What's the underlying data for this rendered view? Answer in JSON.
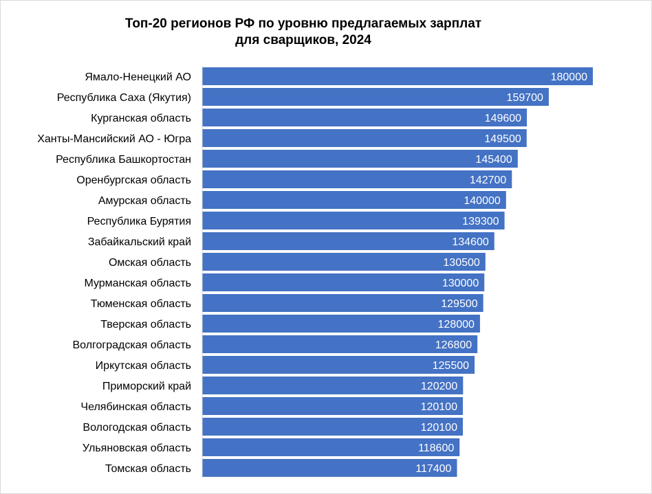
{
  "chart_data": {
    "type": "bar",
    "orientation": "horizontal",
    "title_line1": "Топ-20 регионов РФ по уровню предлагаемых зарплат",
    "title_line2": "для сварщиков, 2024",
    "xlabel": "",
    "ylabel": "",
    "xlim": [
      0,
      180000
    ],
    "grid": false,
    "legend": "none",
    "bar_color": "#4472C4",
    "label_color": "#ffffff",
    "categories": [
      "Ямало-Ненецкий АО",
      "Республика Саха (Якутия)",
      "Курганская область",
      "Ханты-Мансийский АО - Югра",
      "Республика Башкортостан",
      "Оренбургская область",
      "Амурская область",
      "Республика Бурятия",
      "Забайкальский край",
      "Омская область",
      "Мурманская область",
      "Тюменская область",
      "Тверская область",
      "Волгоградская область",
      "Иркутская область",
      "Приморский край",
      "Челябинская область",
      "Вологодская область",
      "Ульяновская область",
      "Томская область"
    ],
    "values": [
      180000,
      159700,
      149600,
      149500,
      145400,
      142700,
      140000,
      139300,
      134600,
      130500,
      130000,
      129500,
      128000,
      126800,
      125500,
      120200,
      120100,
      120100,
      118600,
      117400
    ]
  }
}
